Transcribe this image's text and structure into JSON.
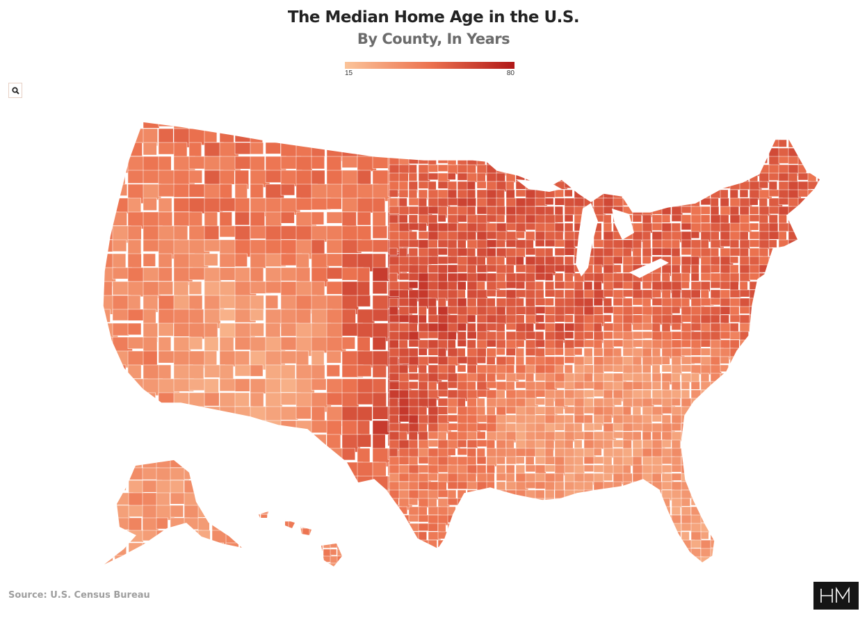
{
  "header": {
    "title": "The Median Home Age in the U.S.",
    "subtitle": "By County, In Years"
  },
  "legend": {
    "min_label": "15",
    "max_label": "80",
    "min_value": 15,
    "max_value": 80,
    "color_low": "#fbc49a",
    "color_mid": "#ec7350",
    "color_high": "#b01818"
  },
  "controls": {
    "search_icon": "search-icon"
  },
  "footer": {
    "source": "Source: U.S. Census Bureau",
    "logo_icon": "hm-monogram-logo"
  },
  "map": {
    "subject": "median home age by county",
    "regions": [
      {
        "name": "west-coast",
        "age": 40
      },
      {
        "name": "interior-west",
        "age": 30
      },
      {
        "name": "northern-rockies",
        "age": 48
      },
      {
        "name": "great-plains",
        "age": 62
      },
      {
        "name": "upper-midwest",
        "age": 58
      },
      {
        "name": "northeast",
        "age": 55
      },
      {
        "name": "southeast",
        "age": 33
      },
      {
        "name": "texas",
        "age": 44
      },
      {
        "name": "florida",
        "age": 32
      },
      {
        "name": "alaska",
        "age": 34
      },
      {
        "name": "hawaii",
        "age": 40
      }
    ]
  }
}
